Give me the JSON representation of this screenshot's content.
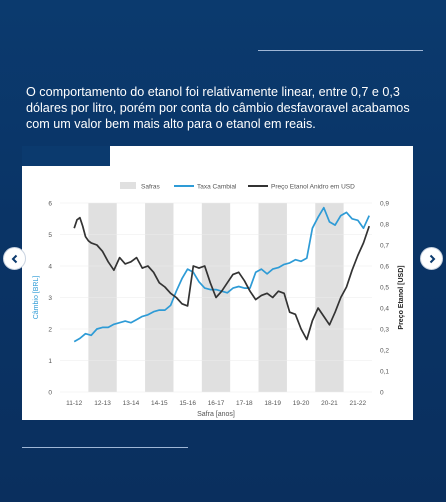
{
  "headline": "O comportamento do etanol foi relativamente linear, entre 0,7 e 0,3 dólares por litro, porém por conta do câmbio desfavoravel acabamos com um valor bem mais alto para o etanol em reais.",
  "icons": {
    "prev": "chevron-left-icon",
    "next": "chevron-right-icon"
  },
  "colors": {
    "background": "#0b3a6e",
    "safras": "#e0e0e0",
    "cambio": "#2e9bd6",
    "etanol": "#333333"
  },
  "chart_data": {
    "type": "line",
    "title": "",
    "xlabel": "Safra [anos]",
    "ylabel_left": "Câmbio [BRL]",
    "ylabel_right": "Preço Etanol [USD]",
    "legend_position": "top",
    "grid": "horizontal",
    "categories": [
      "11-12",
      "12-13",
      "13-14",
      "14-15",
      "15-16",
      "16-17",
      "17-18",
      "18-19",
      "19-20",
      "20-21",
      "21-22"
    ],
    "safras_shaded": [
      "12-13",
      "14-15",
      "16-17",
      "18-19",
      "20-21"
    ],
    "ylim_left": [
      0,
      6
    ],
    "yticks_left": [
      "0",
      "1",
      "2",
      "3",
      "4",
      "5",
      "6"
    ],
    "ylim_right": [
      0,
      0.9
    ],
    "yticks_right": [
      "0",
      "0,1",
      "0,2",
      "0,3",
      "0,4",
      "0,5",
      "0,6",
      "0,7",
      "0,8",
      "0,9"
    ],
    "legend": [
      "Safras",
      "Taxa Cambial",
      "Preço Etanol Anidro em USD"
    ],
    "series": [
      {
        "name": "Taxa Cambial",
        "axis": "left",
        "x": [
          0,
          0.2,
          0.4,
          0.6,
          0.8,
          1.0,
          1.2,
          1.4,
          1.6,
          1.8,
          2.0,
          2.2,
          2.4,
          2.6,
          2.8,
          3.0,
          3.2,
          3.4,
          3.6,
          3.8,
          4.0,
          4.2,
          4.4,
          4.6,
          4.8,
          5.0,
          5.2,
          5.4,
          5.6,
          5.8,
          6.0,
          6.2,
          6.4,
          6.6,
          6.8,
          7.0,
          7.2,
          7.4,
          7.6,
          7.8,
          8.0,
          8.2,
          8.4,
          8.6,
          8.8,
          9.0,
          9.2,
          9.4,
          9.6,
          9.8,
          10.0,
          10.2,
          10.4
        ],
        "values": [
          1.6,
          1.7,
          1.85,
          1.8,
          2.0,
          2.05,
          2.05,
          2.15,
          2.2,
          2.25,
          2.2,
          2.3,
          2.4,
          2.45,
          2.55,
          2.6,
          2.6,
          2.75,
          3.2,
          3.6,
          3.9,
          3.8,
          3.5,
          3.3,
          3.25,
          3.25,
          3.2,
          3.15,
          3.3,
          3.35,
          3.3,
          3.3,
          3.8,
          3.9,
          3.75,
          3.9,
          3.95,
          4.05,
          4.1,
          4.2,
          4.15,
          4.25,
          5.2,
          5.55,
          5.85,
          5.4,
          5.3,
          5.6,
          5.7,
          5.5,
          5.45,
          5.2,
          5.6
        ]
      },
      {
        "name": "Preço Etanol Anidro em USD",
        "axis": "right",
        "x": [
          0,
          0.1,
          0.2,
          0.3,
          0.4,
          0.5,
          0.6,
          0.8,
          1.0,
          1.2,
          1.4,
          1.6,
          1.8,
          2.0,
          2.2,
          2.4,
          2.6,
          2.8,
          3.0,
          3.2,
          3.4,
          3.6,
          3.8,
          4.0,
          4.2,
          4.4,
          4.6,
          4.8,
          5.0,
          5.2,
          5.4,
          5.6,
          5.8,
          6.0,
          6.2,
          6.4,
          6.6,
          6.8,
          7.0,
          7.2,
          7.4,
          7.6,
          7.8,
          8.0,
          8.2,
          8.4,
          8.6,
          8.8,
          9.0,
          9.2,
          9.4,
          9.6,
          9.8,
          10.0,
          10.2,
          10.4
        ],
        "values": [
          0.78,
          0.82,
          0.83,
          0.79,
          0.74,
          0.72,
          0.71,
          0.7,
          0.67,
          0.62,
          0.58,
          0.64,
          0.61,
          0.62,
          0.64,
          0.59,
          0.6,
          0.57,
          0.52,
          0.5,
          0.47,
          0.45,
          0.42,
          0.41,
          0.6,
          0.59,
          0.6,
          0.52,
          0.45,
          0.48,
          0.52,
          0.56,
          0.57,
          0.53,
          0.48,
          0.44,
          0.46,
          0.47,
          0.45,
          0.48,
          0.47,
          0.38,
          0.37,
          0.3,
          0.25,
          0.34,
          0.4,
          0.36,
          0.32,
          0.38,
          0.45,
          0.5,
          0.58,
          0.65,
          0.71,
          0.79
        ]
      }
    ]
  }
}
